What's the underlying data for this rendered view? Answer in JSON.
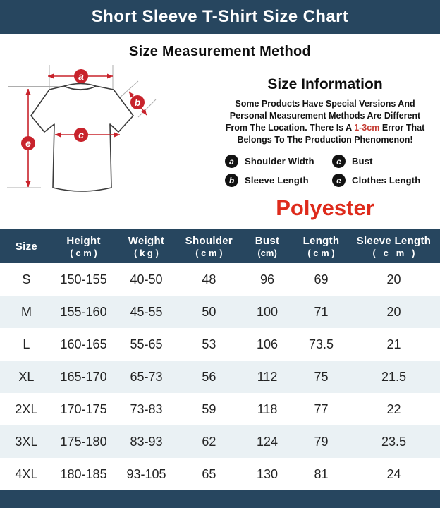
{
  "colors": {
    "navy": "#27465f",
    "row-alt": "#eaf1f4",
    "red": "#c8232c",
    "red-material": "#de2b1c",
    "red-highlight": "#c43a31"
  },
  "header": {
    "title": "Short Sleeve T-Shirt Size Chart"
  },
  "measurement": {
    "title": "Size Measurement Method"
  },
  "diagram": {
    "labels": {
      "a": "a",
      "b": "b",
      "c": "c",
      "e": "e"
    }
  },
  "info": {
    "title": "Size Information",
    "line1": "Some Products Have Special Versions And",
    "line2": "Personal Measurement Methods Are Different",
    "line3_pre": "From The Location. There Is A",
    "line3_hl": "1-3cm",
    "line3_post": "Error That",
    "line4": "Belongs To The Production Phenomenon!"
  },
  "legend": {
    "items": [
      {
        "key": "a",
        "label": "Shoulder Width"
      },
      {
        "key": "c",
        "label": "Bust"
      },
      {
        "key": "b",
        "label": "Sleeve Length"
      },
      {
        "key": "e",
        "label": "Clothes Length"
      }
    ]
  },
  "material": "Polyester",
  "table": {
    "columns": [
      {
        "label": "Size",
        "sub": ""
      },
      {
        "label": "Height",
        "sub": "( c m )"
      },
      {
        "label": "Weight",
        "sub": "( k g )"
      },
      {
        "label": "Shoulder",
        "sub": "( c m )"
      },
      {
        "label": "Bust",
        "sub": "(cm)"
      },
      {
        "label": "Length",
        "sub": "( c m )"
      },
      {
        "label": "Sleeve Length",
        "sub": "(   c   m   )"
      }
    ],
    "rows": [
      [
        "S",
        "150-155",
        "40-50",
        "48",
        "96",
        "69",
        "20"
      ],
      [
        "M",
        "155-160",
        "45-55",
        "50",
        "100",
        "71",
        "20"
      ],
      [
        "L",
        "160-165",
        "55-65",
        "53",
        "106",
        "73.5",
        "21"
      ],
      [
        "XL",
        "165-170",
        "65-73",
        "56",
        "112",
        "75",
        "21.5"
      ],
      [
        "2XL",
        "170-175",
        "73-83",
        "59",
        "118",
        "77",
        "22"
      ],
      [
        "3XL",
        "175-180",
        "83-93",
        "62",
        "124",
        "79",
        "23.5"
      ],
      [
        "4XL",
        "180-185",
        "93-105",
        "65",
        "130",
        "81",
        "24"
      ]
    ]
  }
}
